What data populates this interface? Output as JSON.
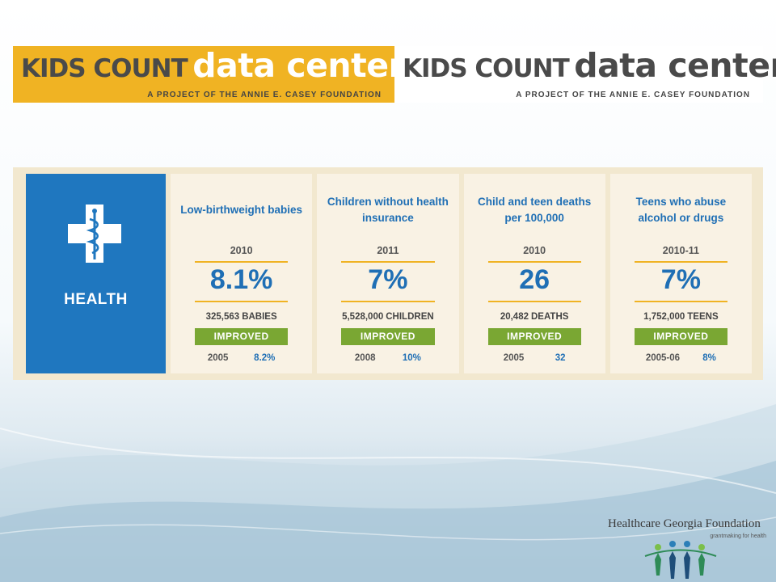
{
  "logos": [
    {
      "kids_count": "KIDS COUNT",
      "data_center": "data center",
      "tagline": "A PROJECT OF THE ANNIE E. CASEY FOUNDATION"
    },
    {
      "kids_count": "KIDS COUNT",
      "data_center": "data center",
      "tagline": "A PROJECT OF THE ANNIE E. CASEY FOUNDATION"
    }
  ],
  "health": {
    "label": "HEALTH",
    "icon": "medical-cross-caduceus-icon",
    "indicators": [
      {
        "title": "Low-birthweight babies",
        "year": "2010",
        "value": "8.1%",
        "count": "325,563",
        "unit": "BABIES",
        "status": "IMPROVED",
        "base_year": "2005",
        "base_value": "8.2%"
      },
      {
        "title": "Children without health insurance",
        "year": "2011",
        "value": "7%",
        "count": "5,528,000",
        "unit": "CHILDREN",
        "status": "IMPROVED",
        "base_year": "2008",
        "base_value": "10%"
      },
      {
        "title": "Child and teen deaths per 100,000",
        "year": "2010",
        "value": "26",
        "count": "20,482",
        "unit": "DEATHS",
        "status": "IMPROVED",
        "base_year": "2005",
        "base_value": "32"
      },
      {
        "title": "Teens who abuse alcohol or drugs",
        "year": "2010-11",
        "value": "7%",
        "count": "1,752,000",
        "unit": "TEENS",
        "status": "IMPROVED",
        "base_year": "2005-06",
        "base_value": "8%"
      }
    ]
  },
  "foundation": {
    "name": "Healthcare Georgia Foundation",
    "tagline": "grantmaking for health"
  },
  "colors": {
    "kids_count_orange": "#f0b323",
    "health_blue": "#1f77bf",
    "improved_green": "#7aa733",
    "panel_beige": "#f2e8cf"
  }
}
